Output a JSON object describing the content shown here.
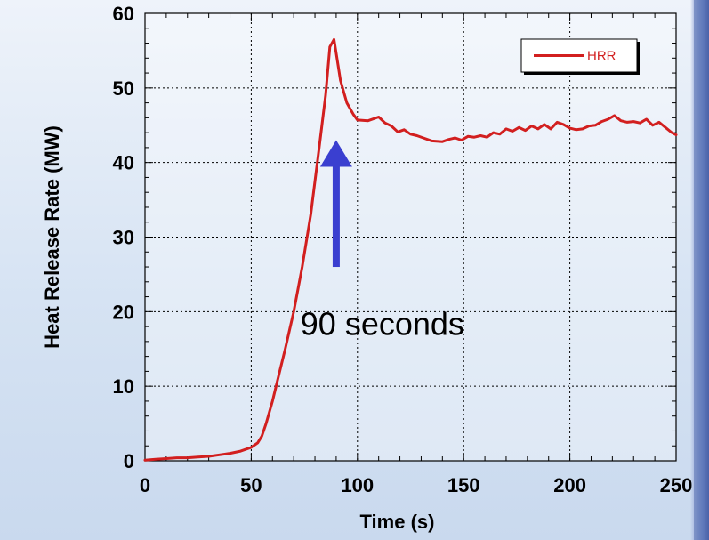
{
  "chart_data": {
    "type": "line",
    "xlabel": "Time (s)",
    "ylabel": "Heat Release Rate (MW)",
    "xlim": [
      0,
      250
    ],
    "ylim": [
      0,
      60
    ],
    "xticks": [
      0,
      50,
      100,
      150,
      200,
      250
    ],
    "yticks": [
      0,
      10,
      20,
      30,
      40,
      50,
      60
    ],
    "grid": true,
    "legend_position": "top-right",
    "series": [
      {
        "name": "HRR",
        "color": "#d21f1f",
        "x": [
          0,
          5,
          10,
          15,
          20,
          25,
          30,
          35,
          40,
          45,
          50,
          53,
          55,
          57,
          60,
          63,
          66,
          70,
          74,
          78,
          82,
          85,
          87,
          89,
          92,
          95,
          98,
          100,
          105,
          110,
          113,
          116,
          119,
          122,
          125,
          128,
          131,
          135,
          140,
          143,
          146,
          149,
          152,
          155,
          158,
          161,
          164,
          167,
          170,
          173,
          176,
          179,
          182,
          185,
          188,
          191,
          194,
          197,
          200,
          203,
          206,
          209,
          212,
          215,
          218,
          221,
          224,
          227,
          230,
          233,
          236,
          239,
          242,
          245,
          248,
          250
        ],
        "values": [
          0.1,
          0.2,
          0.3,
          0.4,
          0.4,
          0.5,
          0.6,
          0.8,
          1.0,
          1.3,
          1.8,
          2.4,
          3.3,
          5.0,
          8.0,
          11.5,
          15.0,
          20.0,
          26.0,
          33.0,
          42.0,
          49.0,
          55.5,
          56.5,
          51.0,
          48.0,
          46.5,
          45.7,
          45.6,
          46.1,
          45.3,
          44.9,
          44.1,
          44.4,
          43.8,
          43.6,
          43.3,
          42.9,
          42.8,
          43.1,
          43.3,
          43.0,
          43.5,
          43.4,
          43.6,
          43.4,
          44.0,
          43.8,
          44.5,
          44.2,
          44.7,
          44.3,
          44.9,
          44.5,
          45.1,
          44.5,
          45.4,
          45.1,
          44.6,
          44.4,
          44.5,
          44.9,
          45.0,
          45.5,
          45.8,
          46.3,
          45.6,
          45.4,
          45.5,
          45.3,
          45.8,
          45.0,
          45.4,
          44.7,
          44.0,
          43.7
        ]
      }
    ],
    "annotations": [
      {
        "text": "90 seconds",
        "x": 95,
        "y": 20
      }
    ],
    "arrow": {
      "x": 90,
      "y_from": 26,
      "y_to": 43,
      "color": "#3a3fd0"
    }
  }
}
